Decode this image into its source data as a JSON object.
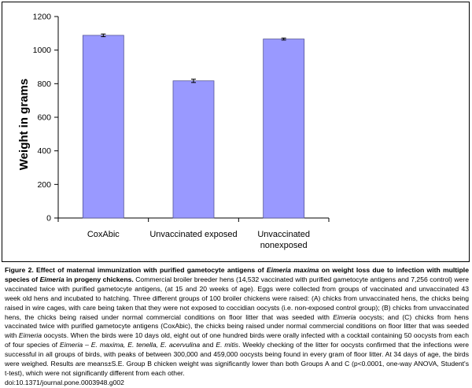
{
  "chart_data": {
    "type": "bar",
    "categories": [
      "CoxAbic",
      "Unvaccinated exposed",
      "Unvaccinated nonexposed"
    ],
    "category_label_lines": [
      [
        "CoxAbic"
      ],
      [
        "Unvaccinated exposed"
      ],
      [
        "Unvaccinated",
        "nonexposed"
      ]
    ],
    "values": [
      1088,
      817,
      1066
    ],
    "error": [
      8,
      10,
      6
    ],
    "title": "",
    "xlabel": "",
    "ylabel": "Weight in grams",
    "ylim": [
      0,
      1200
    ],
    "yticks": [
      0,
      200,
      400,
      600,
      800,
      1000,
      1200
    ],
    "grid": false,
    "legend": "none",
    "bar_color": "#9999ff",
    "bar_edge_color": "#555599"
  },
  "caption": {
    "title_segments": [
      {
        "text": "Figure 2. Effect of maternal immunization with purified gametocyte antigens of ",
        "italic": false
      },
      {
        "text": "Eimeria maxima",
        "italic": true
      },
      {
        "text": " on weight loss due to infection with multiple species of ",
        "italic": false
      },
      {
        "text": "Eimeria",
        "italic": true
      },
      {
        "text": " in progeny chickens.",
        "italic": false
      }
    ],
    "body_segments": [
      {
        "text": " Commercial broiler breeder hens (14,532 vaccinated with purified gametocyte antigens and 7,256 control) were vaccinated twice with purified gametocyte antigens, (at 15 and 20 weeks of age). Eggs were collected from groups of vaccinated and unvaccinated 43 week old hens and incubated to hatching. Three different groups of 100 broiler chickens were raised: (A) chicks from unvaccinated hens, the chicks being raised in wire cages, with care being taken that they were not exposed to coccidian oocysts (i.e. non-exposed control group); (B) chicks from unvaccinated hens, the chicks being raised under normal commercial conditions on floor litter that was seeded with ",
        "italic": false
      },
      {
        "text": "Eimeria",
        "italic": true
      },
      {
        "text": " oocysts; and (C) chicks from hens vaccinated twice with purified gametocyte antigens (CoxAbic), the chicks being raised under normal commercial conditions on floor litter that was seeded with ",
        "italic": false
      },
      {
        "text": "Eimeria",
        "italic": true
      },
      {
        "text": " oocysts. When the birds were 10 days old, eight out of one hundred birds were orally infected with a cocktail containing 50 oocysts from each of four species of ",
        "italic": false
      },
      {
        "text": "Eimeria",
        "italic": true
      },
      {
        "text": " – ",
        "italic": false
      },
      {
        "text": "E. maxima, E. tenella, E. acervulina",
        "italic": true
      },
      {
        "text": " and ",
        "italic": false
      },
      {
        "text": "E. mitis",
        "italic": true
      },
      {
        "text": ". Weekly checking of the litter for oocysts confirmed that the infections were successful in all groups of birds, with peaks of between 300,000 and 459,000 oocysts being found in every gram of floor litter. At 34 days of age, the birds were weighed. Results are means±S.E. Group B chicken weight was significantly lower than both Groups A and C (p<0.0001, one-way ANOVA, Student's t-test), which were not significantly different from each other.",
        "italic": false
      }
    ],
    "doi": "doi:10.1371/journal.pone.0003948.g002"
  }
}
